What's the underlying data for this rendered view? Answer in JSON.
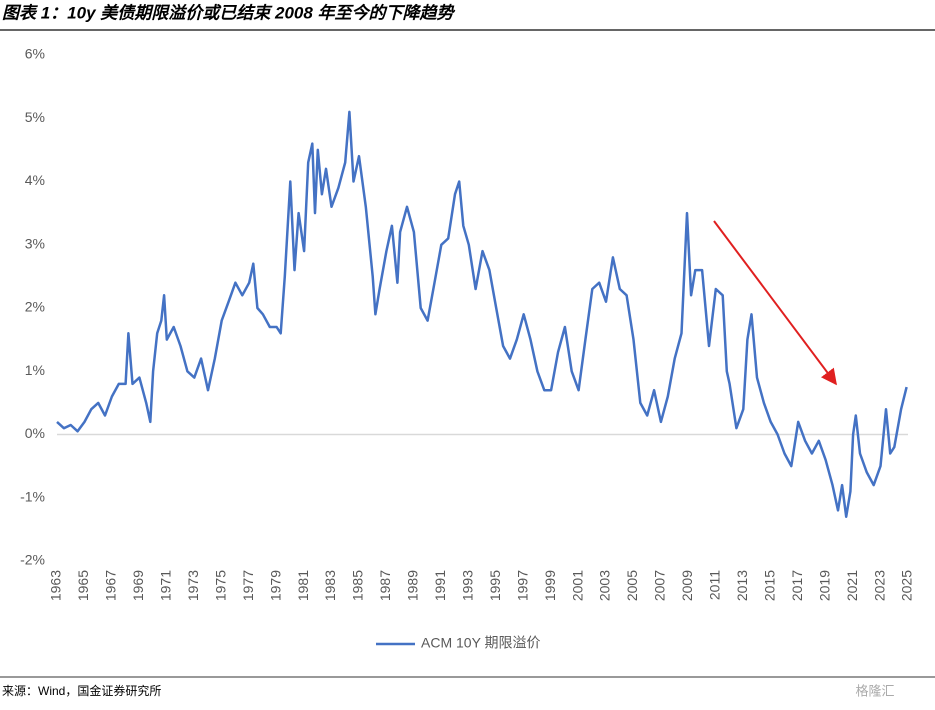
{
  "chart_data": {
    "type": "line",
    "title": "图表 1：10y 美债期限溢价或已结束 2008 年至今的下降趋势",
    "source": "来源：Wind，国金证券研究所",
    "watermark": "格隆汇",
    "xlim": [
      1963,
      2025
    ],
    "xticks": [
      1963,
      1965,
      1967,
      1969,
      1971,
      1973,
      1975,
      1977,
      1979,
      1981,
      1983,
      1985,
      1987,
      1989,
      1991,
      1993,
      1995,
      1997,
      1999,
      2001,
      2003,
      2005,
      2007,
      2009,
      2011,
      2013,
      2015,
      2017,
      2019,
      2021,
      2023,
      2025
    ],
    "ylim": [
      -2,
      6
    ],
    "yticks": [
      {
        "value": -2,
        "label": "-2%"
      },
      {
        "value": -1,
        "label": "-1%"
      },
      {
        "value": 0,
        "label": "0%"
      },
      {
        "value": 1,
        "label": "1%"
      },
      {
        "value": 2,
        "label": "2%"
      },
      {
        "value": 3,
        "label": "3%"
      },
      {
        "value": 4,
        "label": "4%"
      },
      {
        "value": 5,
        "label": "5%"
      },
      {
        "value": 6,
        "label": "6%"
      }
    ],
    "zero_line": true,
    "legend": "bottom",
    "x": [
      1963,
      1963.5,
      1964,
      1964.5,
      1965,
      1965.5,
      1966,
      1966.5,
      1967,
      1967.5,
      1968,
      1968.2,
      1968.5,
      1969,
      1969.5,
      1969.8,
      1970,
      1970.3,
      1970.6,
      1970.8,
      1971,
      1971.5,
      1972,
      1972.5,
      1973,
      1973.5,
      1974,
      1974.5,
      1975,
      1975.5,
      1976,
      1976.5,
      1977,
      1977.3,
      1977.6,
      1978,
      1978.5,
      1979,
      1979.3,
      1979.6,
      1980,
      1980.3,
      1980.6,
      1981,
      1981.3,
      1981.6,
      1981.8,
      1982,
      1982.3,
      1982.6,
      1983,
      1983.5,
      1984,
      1984.3,
      1984.6,
      1985,
      1985.5,
      1986,
      1986.2,
      1986.5,
      1987,
      1987.4,
      1987.8,
      1988,
      1988.5,
      1989,
      1989.5,
      1990,
      1990.5,
      1991,
      1991.5,
      1992,
      1992.3,
      1992.6,
      1993,
      1993.5,
      1994,
      1994.5,
      1995,
      1995.5,
      1996,
      1996.5,
      1997,
      1997.5,
      1998,
      1998.5,
      1999,
      1999.5,
      2000,
      2000.5,
      2001,
      2001.5,
      2002,
      2002.5,
      2003,
      2003.5,
      2004,
      2004.5,
      2005,
      2005.5,
      2006,
      2006.5,
      2007,
      2007.5,
      2008,
      2008.5,
      2008.9,
      2009.2,
      2009.5,
      2010,
      2010.5,
      2011,
      2011.5,
      2011.8,
      2012,
      2012.5,
      2013,
      2013.3,
      2013.6,
      2014,
      2014.5,
      2015,
      2015.5,
      2016,
      2016.5,
      2017,
      2017.5,
      2018,
      2018.5,
      2019,
      2019.5,
      2019.9,
      2020.2,
      2020.5,
      2020.8,
      2021,
      2021.2,
      2021.5,
      2022,
      2022.5,
      2023,
      2023.4,
      2023.7,
      2024,
      2024.5,
      2024.9
    ],
    "series": [
      {
        "name": "ACM 10Y 期限溢价",
        "color": "#4472c4",
        "values": [
          0.2,
          0.1,
          0.15,
          0.05,
          0.2,
          0.4,
          0.5,
          0.3,
          0.6,
          0.8,
          0.8,
          1.6,
          0.8,
          0.9,
          0.5,
          0.2,
          1.0,
          1.6,
          1.8,
          2.2,
          1.5,
          1.7,
          1.4,
          1.0,
          0.9,
          1.2,
          0.7,
          1.2,
          1.8,
          2.1,
          2.4,
          2.2,
          2.4,
          2.7,
          2.0,
          1.9,
          1.7,
          1.7,
          1.6,
          2.5,
          4.0,
          2.6,
          3.5,
          2.9,
          4.3,
          4.6,
          3.5,
          4.5,
          3.8,
          4.2,
          3.6,
          3.9,
          4.3,
          5.1,
          4.0,
          4.4,
          3.6,
          2.5,
          1.9,
          2.3,
          2.9,
          3.3,
          2.4,
          3.2,
          3.6,
          3.2,
          2.0,
          1.8,
          2.4,
          3.0,
          3.1,
          3.8,
          4.0,
          3.3,
          3.0,
          2.3,
          2.9,
          2.6,
          2.0,
          1.4,
          1.2,
          1.5,
          1.9,
          1.5,
          1.0,
          0.7,
          0.7,
          1.3,
          1.7,
          1.0,
          0.7,
          1.5,
          2.3,
          2.4,
          2.1,
          2.8,
          2.3,
          2.2,
          1.5,
          0.5,
          0.3,
          0.7,
          0.2,
          0.6,
          1.2,
          1.6,
          3.5,
          2.2,
          2.6,
          2.6,
          1.4,
          2.3,
          2.2,
          1.0,
          0.8,
          0.1,
          0.4,
          1.5,
          1.9,
          0.9,
          0.5,
          0.2,
          0.0,
          -0.3,
          -0.5,
          0.2,
          -0.1,
          -0.3,
          -0.1,
          -0.4,
          -0.8,
          -1.2,
          -0.8,
          -1.3,
          -0.9,
          0.0,
          0.3,
          -0.3,
          -0.6,
          -0.8,
          -0.5,
          0.4,
          -0.3,
          -0.2,
          0.4,
          0.75
        ]
      }
    ]
  }
}
